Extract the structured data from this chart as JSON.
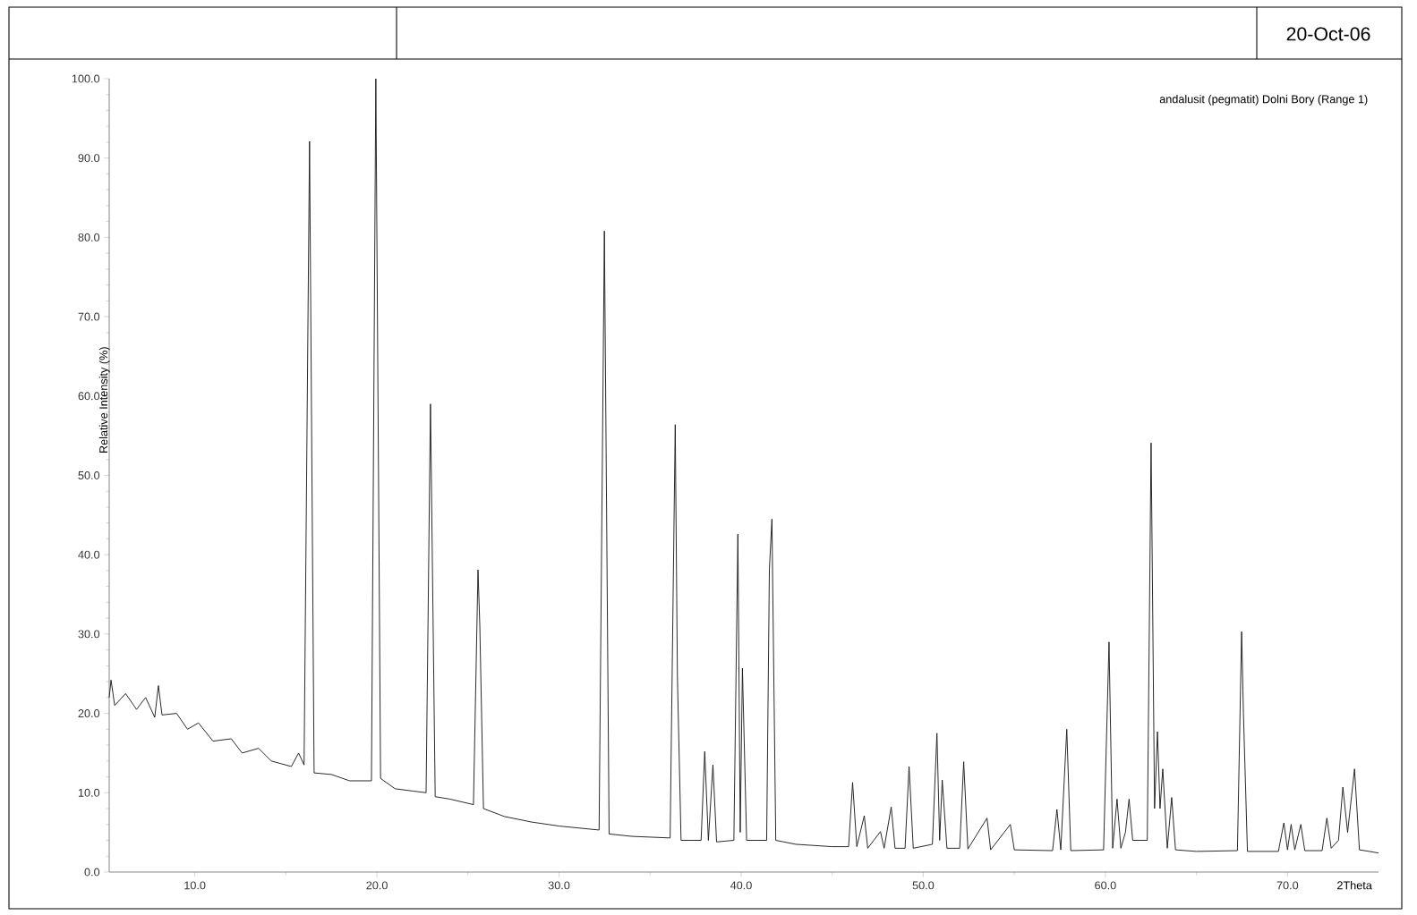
{
  "chart_data": {
    "type": "line",
    "xlabel": "2Theta",
    "ylabel": "Relative Intensity (%)",
    "annotations": [
      "andalusit (pegmatit) Dolni Bory (Range 1)",
      "20-Oct-06"
    ],
    "xlim": [
      5.3,
      75
    ],
    "ylim": [
      0,
      100
    ],
    "xticks": [
      {
        "value": 10,
        "label": "10.0"
      },
      {
        "value": 20,
        "label": "20.0"
      },
      {
        "value": 30,
        "label": "30.0"
      },
      {
        "value": 40,
        "label": "40.0"
      },
      {
        "value": 50,
        "label": "50.0"
      },
      {
        "value": 60,
        "label": "60.0"
      },
      {
        "value": 70,
        "label": "70.0"
      }
    ],
    "yticks": [
      {
        "value": 0,
        "label": "0.0"
      },
      {
        "value": 10,
        "label": "10.0"
      },
      {
        "value": 20,
        "label": "20.0"
      },
      {
        "value": 30,
        "label": "30.0"
      },
      {
        "value": 40,
        "label": "40.0"
      },
      {
        "value": 50,
        "label": "50.0"
      },
      {
        "value": 60,
        "label": "60.0"
      },
      {
        "value": 70,
        "label": "70.0"
      },
      {
        "value": 80,
        "label": "80.0"
      },
      {
        "value": 90,
        "label": "90.0"
      },
      {
        "value": 100,
        "label": "100.0"
      }
    ],
    "series": [
      {
        "color": "#1a1a1a",
        "x": [
          5.3,
          5.4,
          5.6,
          6.2,
          6.8,
          7.3,
          7.8,
          8.0,
          8.2,
          9,
          9.6,
          10.2,
          11,
          12,
          12.6,
          13.5,
          14.2,
          15.3,
          15.7,
          16.0,
          16.3,
          16.55,
          17.5,
          18.5,
          19.7,
          19.94,
          20.2,
          21,
          22,
          22.7,
          22.94,
          23.2,
          24,
          25.3,
          25.55,
          25.65,
          25.85,
          27,
          28.5,
          30,
          32.2,
          32.49,
          32.75,
          34,
          36.1,
          36.38,
          36.5,
          36.7,
          37.8,
          38.0,
          38.2,
          38.45,
          38.65,
          39.6,
          39.82,
          39.95,
          40.07,
          40.3,
          41.4,
          41.55,
          41.69,
          41.9,
          43,
          45,
          45.9,
          46.12,
          46.35,
          46.76,
          46.95,
          47.65,
          47.85,
          48.24,
          48.45,
          49.0,
          49.22,
          49.45,
          50.5,
          50.75,
          50.9,
          51.04,
          51.3,
          52.0,
          52.22,
          52.45,
          53.5,
          53.7,
          54.78,
          55,
          57.1,
          57.34,
          57.55,
          57.88,
          58.1,
          59.9,
          60.2,
          60.4,
          60.64,
          60.85,
          61.1,
          61.3,
          61.5,
          62.3,
          62.51,
          62.7,
          62.86,
          63.0,
          63.15,
          63.4,
          63.64,
          63.85,
          65,
          67.25,
          67.48,
          67.58,
          67.8,
          69.5,
          69.8,
          70.0,
          70.2,
          70.4,
          70.73,
          70.95,
          71.9,
          72.16,
          72.4,
          72.8,
          73.04,
          73.3,
          73.68,
          73.95,
          74.5,
          75
        ],
        "values": [
          22,
          24.2,
          21,
          22.5,
          20.5,
          22,
          19.5,
          23.5,
          19.8,
          20,
          18,
          18.8,
          16.5,
          16.8,
          15,
          15.6,
          14,
          13.3,
          15,
          13.5,
          92.1,
          12.5,
          12.3,
          11.5,
          11.5,
          100,
          11.8,
          10.5,
          10.2,
          10,
          59,
          9.5,
          9.2,
          8.5,
          38.1,
          31,
          8,
          7,
          6.3,
          5.8,
          5.3,
          80.8,
          4.8,
          4.5,
          4.3,
          56.4,
          24.6,
          4,
          4,
          15.2,
          4,
          13.5,
          3.8,
          4,
          42.6,
          5,
          25.7,
          4,
          4,
          38.2,
          44.5,
          4,
          3.5,
          3.2,
          3.2,
          11.3,
          3.2,
          7.1,
          3,
          5.1,
          3,
          8.2,
          3,
          3,
          13.3,
          3,
          3.5,
          17.5,
          4,
          11.6,
          3,
          3,
          13.9,
          2.9,
          6.8,
          2.8,
          6.0,
          2.8,
          2.7,
          7.9,
          2.8,
          18,
          2.7,
          2.8,
          29,
          3,
          9.2,
          3,
          5,
          9.2,
          4,
          4,
          54.1,
          8,
          17.7,
          8,
          13,
          3,
          9.4,
          2.8,
          2.6,
          2.7,
          30.3,
          20,
          2.6,
          2.6,
          6.2,
          2.8,
          6,
          2.8,
          6,
          2.7,
          2.7,
          6.8,
          3,
          4,
          10.7,
          5,
          13,
          2.8,
          2.6,
          2.4
        ]
      }
    ]
  }
}
